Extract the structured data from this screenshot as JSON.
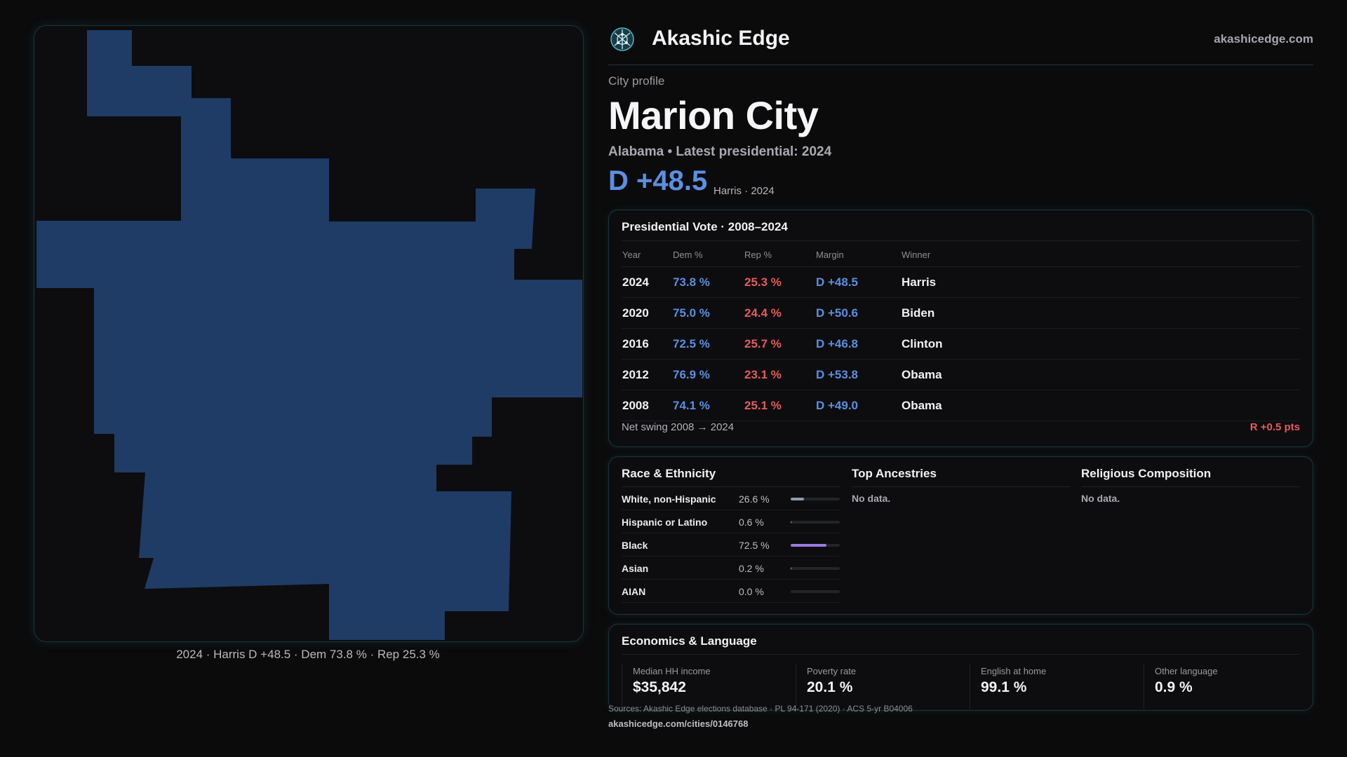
{
  "brand": {
    "name": "Akashic Edge",
    "url": "akashicedge.com",
    "logo_icon": "network-globe-icon"
  },
  "profile": {
    "kicker": "City profile",
    "city": "Marion City",
    "subtitle": "Alabama • Latest presidential: 2024",
    "margin": "D +48.5",
    "margin_note": "Harris · 2024"
  },
  "map": {
    "caption": "2024 · Harris D +48.5 · Dem 73.8 % · Rep 25.3 %",
    "fill_color": "#1f3c66"
  },
  "vote": {
    "title": "Presidential Vote · 2008–2024",
    "columns": [
      "Year",
      "Dem %",
      "Rep %",
      "Margin",
      "Winner"
    ],
    "rows": [
      {
        "year": "2024",
        "dem": "73.8 %",
        "rep": "25.3 %",
        "margin": "D +48.5",
        "winner": "Harris"
      },
      {
        "year": "2020",
        "dem": "75.0 %",
        "rep": "24.4 %",
        "margin": "D +50.6",
        "winner": "Biden"
      },
      {
        "year": "2016",
        "dem": "72.5 %",
        "rep": "25.7 %",
        "margin": "D +46.8",
        "winner": "Clinton"
      },
      {
        "year": "2012",
        "dem": "76.9 %",
        "rep": "23.1 %",
        "margin": "D +53.8",
        "winner": "Obama"
      },
      {
        "year": "2008",
        "dem": "74.1 %",
        "rep": "25.1 %",
        "margin": "D +49.0",
        "winner": "Obama"
      }
    ],
    "swing_label": "Net swing 2008 → 2024",
    "swing_value": "R +0.5 pts"
  },
  "demographics": {
    "race": {
      "title": "Race & Ethnicity",
      "rows": [
        {
          "name": "White, non-Hispanic",
          "pct": "26.6 %",
          "value": 26.6,
          "color": "#8f9bb0"
        },
        {
          "name": "Hispanic or Latino",
          "pct": "0.6 %",
          "value": 0.6,
          "color": "#8f9bb0"
        },
        {
          "name": "Black",
          "pct": "72.5 %",
          "value": 72.5,
          "color": "#9b7be0"
        },
        {
          "name": "Asian",
          "pct": "0.2 %",
          "value": 0.2,
          "color": "#8f9bb0"
        },
        {
          "name": "AIAN",
          "pct": "0.0 %",
          "value": 0.0,
          "color": "#8f9bb0"
        }
      ]
    },
    "ancestries": {
      "title": "Top Ancestries",
      "empty": "No data."
    },
    "religion": {
      "title": "Religious Composition",
      "empty": "No data."
    }
  },
  "economics": {
    "title": "Economics & Language",
    "items": [
      {
        "label": "Median HH income",
        "value": "$35,842"
      },
      {
        "label": "Poverty rate",
        "value": "20.1 %"
      },
      {
        "label": "English at home",
        "value": "99.1 %"
      },
      {
        "label": "Other language",
        "value": "0.9 %"
      }
    ]
  },
  "footer": {
    "sources": "Sources: Akashic Edge elections database · PL 94-171 (2020) · ACS 5-yr B04006",
    "url": "akashicedge.com/cities/0146768"
  }
}
